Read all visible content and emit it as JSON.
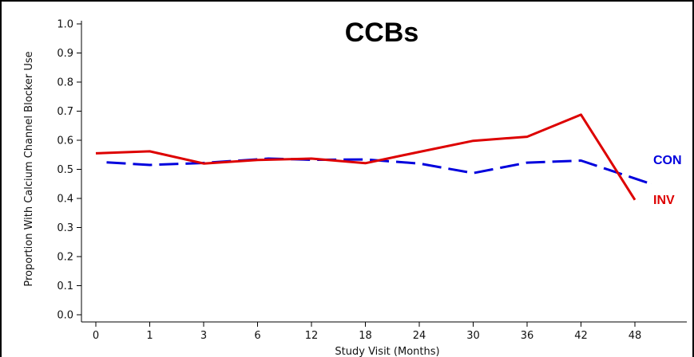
{
  "chart_data": {
    "type": "line",
    "title": "CCBs",
    "xlabel": "Study Visit (Months)",
    "ylabel": "Proportion With Calcium Channel Blocker Use",
    "categories": [
      "0",
      "1",
      "3",
      "6",
      "12",
      "18",
      "24",
      "30",
      "36",
      "42",
      "48"
    ],
    "ylim": [
      0.0,
      1.0
    ],
    "yticks": [
      "0.0",
      "0.1",
      "0.2",
      "0.3",
      "0.4",
      "0.5",
      "0.6",
      "0.7",
      "0.8",
      "0.9",
      "1.0"
    ],
    "grid": false,
    "series": [
      {
        "name": "CON",
        "color": "#0000dd",
        "style": "dashed",
        "x": [
          0.2,
          1,
          2,
          3.2,
          4,
          5,
          6,
          7,
          8,
          9,
          10.3
        ],
        "values": [
          0.524,
          0.515,
          0.522,
          0.537,
          0.533,
          0.534,
          0.52,
          0.487,
          0.523,
          0.53,
          0.45
        ]
      },
      {
        "name": "INV",
        "color": "#dd0000",
        "style": "solid",
        "x": [
          0,
          1,
          2,
          3,
          4,
          5,
          6,
          7,
          8,
          9,
          10
        ],
        "values": [
          0.555,
          0.562,
          0.52,
          0.532,
          0.537,
          0.521,
          0.56,
          0.598,
          0.612,
          0.688,
          0.395
        ]
      }
    ]
  }
}
